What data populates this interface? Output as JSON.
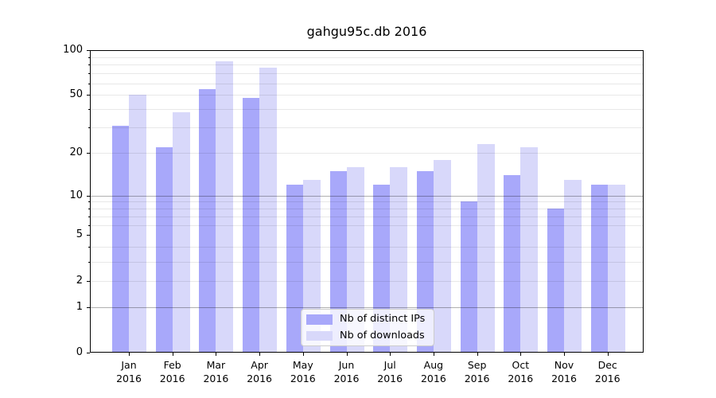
{
  "title": "gahgu95c.db 2016",
  "chart_data": {
    "type": "bar",
    "title": "gahgu95c.db 2016",
    "categories": [
      "Jan",
      "Feb",
      "Mar",
      "Apr",
      "May",
      "Jun",
      "Jul",
      "Aug",
      "Sep",
      "Oct",
      "Nov",
      "Dec"
    ],
    "year_label": "2016",
    "series": [
      {
        "name": "Nb of distinct IPs",
        "color": "#a8a8fa",
        "values": [
          31,
          22,
          55,
          48,
          12,
          15,
          12,
          15,
          9,
          14,
          8,
          12
        ]
      },
      {
        "name": "Nb of downloads",
        "color": "#d8d8fa",
        "values": [
          50,
          38,
          84,
          76,
          13,
          16,
          16,
          18,
          23,
          22,
          13,
          12
        ]
      }
    ],
    "yscale": "log1p",
    "ylim": [
      0,
      100
    ],
    "y_ticks": [
      0,
      1,
      2,
      5,
      10,
      20,
      50,
      100
    ],
    "y_major_grid": [
      1,
      10
    ],
    "y_minor_grid": [
      2,
      3,
      4,
      6,
      7,
      8,
      9,
      20,
      30,
      40,
      50,
      60,
      70,
      80,
      90
    ],
    "grid": true,
    "legend_position": "lower center",
    "xlabel": "",
    "ylabel": ""
  }
}
